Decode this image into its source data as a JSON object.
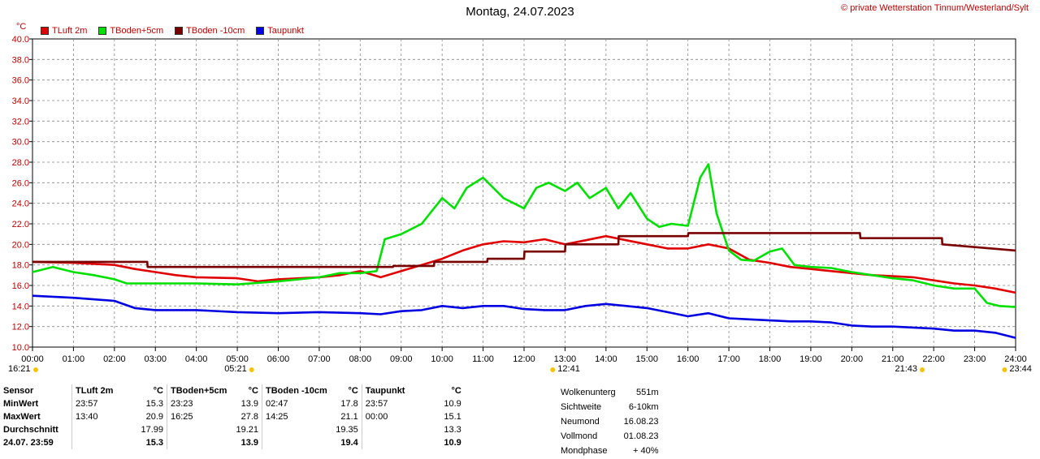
{
  "header": {
    "title": "Montag, 24.07.2023",
    "copyright": "© private Wetterstation Tinnum/Westerland/Sylt",
    "unit": "°C"
  },
  "legend": [
    {
      "label": "TLuft 2m",
      "color": "#e00000"
    },
    {
      "label": "TBoden+5cm",
      "color": "#00e000"
    },
    {
      "label": "TBoden -10cm",
      "color": "#7a0000"
    },
    {
      "label": "Taupunkt",
      "color": "#0000e0"
    }
  ],
  "chart_data": {
    "type": "line",
    "ylim": [
      10,
      40
    ],
    "yticks": [
      "10.0",
      "12.0",
      "14.0",
      "16.0",
      "18.0",
      "20.0",
      "22.0",
      "24.0",
      "26.0",
      "28.0",
      "30.0",
      "32.0",
      "34.0",
      "36.0",
      "38.0",
      "40.0"
    ],
    "xlim": [
      0,
      24
    ],
    "xticks": [
      "00:00",
      "01:00",
      "02:00",
      "03:00",
      "04:00",
      "05:00",
      "06:00",
      "07:00",
      "08:00",
      "09:00",
      "10:00",
      "11:00",
      "12:00",
      "13:00",
      "14:00",
      "15:00",
      "16:00",
      "17:00",
      "18:00",
      "19:00",
      "20:00",
      "21:00",
      "22:00",
      "23:00",
      "24:00"
    ],
    "sun_moon_labels": [
      {
        "x": 0,
        "text": "16:21"
      },
      {
        "x": 5.35,
        "text": "05:21"
      },
      {
        "x": 12.7,
        "text": "12:41"
      },
      {
        "x": 21.72,
        "text": "21:43"
      },
      {
        "x": 23.73,
        "text": "23:44"
      }
    ],
    "series": [
      {
        "name": "TLuft 2m",
        "color": "#e00000",
        "x": [
          0,
          1,
          2,
          2.5,
          3,
          3.5,
          4,
          5,
          5.5,
          6,
          7,
          7.5,
          8,
          8.5,
          9,
          9.5,
          10,
          10.5,
          11,
          11.5,
          12,
          12.5,
          13,
          13.5,
          14,
          14.5,
          15,
          15.5,
          16,
          16.5,
          17,
          17.5,
          18,
          18.5,
          19,
          19.5,
          20,
          20.5,
          21,
          21.5,
          22,
          22.5,
          23,
          23.5,
          24
        ],
        "y": [
          18.3,
          18.2,
          18.0,
          17.6,
          17.3,
          17.0,
          16.8,
          16.7,
          16.4,
          16.6,
          16.8,
          17.0,
          17.4,
          16.8,
          17.4,
          18.0,
          18.6,
          19.4,
          20.0,
          20.3,
          20.2,
          20.5,
          20.0,
          20.4,
          20.8,
          20.4,
          20.0,
          19.6,
          19.6,
          20.0,
          19.6,
          18.5,
          18.2,
          17.8,
          17.6,
          17.4,
          17.2,
          17.0,
          16.9,
          16.8,
          16.5,
          16.2,
          16.0,
          15.7,
          15.3
        ]
      },
      {
        "name": "TBoden+5cm",
        "color": "#00e000",
        "x": [
          0,
          0.5,
          1,
          1.5,
          2,
          2.3,
          3,
          3.5,
          4,
          5,
          6,
          6.5,
          7,
          7.5,
          8,
          8.4,
          8.6,
          9,
          9.5,
          10,
          10.3,
          10.6,
          11,
          11.5,
          12,
          12.3,
          12.6,
          13,
          13.3,
          13.6,
          14,
          14.3,
          14.6,
          15,
          15.3,
          15.6,
          16,
          16.3,
          16.5,
          16.7,
          17,
          17.3,
          17.6,
          18,
          18.3,
          18.6,
          19,
          19.5,
          20,
          20.5,
          21,
          21.5,
          22,
          22.5,
          23,
          23.3,
          23.6,
          24
        ],
        "y": [
          17.3,
          17.8,
          17.3,
          17.0,
          16.6,
          16.2,
          16.2,
          16.2,
          16.2,
          16.1,
          16.4,
          16.6,
          16.8,
          17.2,
          17.2,
          17.4,
          20.5,
          21.0,
          22.0,
          24.5,
          23.5,
          25.5,
          26.5,
          24.5,
          23.5,
          25.5,
          26.0,
          25.2,
          26.0,
          24.5,
          25.5,
          23.5,
          25.0,
          22.5,
          21.7,
          22.0,
          21.8,
          26.5,
          27.8,
          23.0,
          19.4,
          18.5,
          18.4,
          19.3,
          19.6,
          18.0,
          17.8,
          17.7,
          17.3,
          17.0,
          16.7,
          16.5,
          16.0,
          15.7,
          15.7,
          14.3,
          14.0,
          13.9
        ]
      },
      {
        "name": "TBoden -10cm",
        "color": "#7a0000",
        "x": [
          0,
          2.8,
          2.81,
          8.8,
          8.81,
          9.8,
          9.81,
          11.1,
          11.11,
          12,
          12.01,
          13,
          13.01,
          14.3,
          14.31,
          16,
          16.01,
          17,
          17.01,
          20.2,
          20.21,
          22.2,
          22.21,
          24
        ],
        "y": [
          18.3,
          18.3,
          17.8,
          17.8,
          17.9,
          17.9,
          18.3,
          18.3,
          18.6,
          18.6,
          19.3,
          19.3,
          20.0,
          20.0,
          20.8,
          20.8,
          21.1,
          21.1,
          21.1,
          21.1,
          20.6,
          20.6,
          20.0,
          19.4
        ]
      },
      {
        "name": "Taupunkt",
        "color": "#0000e0",
        "x": [
          0,
          1,
          2,
          2.5,
          3,
          4,
          5,
          6,
          7,
          8,
          8.5,
          9,
          9.5,
          10,
          10.5,
          11,
          11.5,
          12,
          12.5,
          13,
          13.5,
          14,
          14.5,
          15,
          15.5,
          16,
          16.5,
          17,
          17.5,
          18,
          18.5,
          19,
          19.5,
          20,
          20.5,
          21,
          21.5,
          22,
          22.5,
          23,
          23.5,
          24
        ],
        "y": [
          15.0,
          14.8,
          14.5,
          13.8,
          13.6,
          13.6,
          13.4,
          13.3,
          13.4,
          13.3,
          13.2,
          13.5,
          13.6,
          14.0,
          13.8,
          14.0,
          14.0,
          13.7,
          13.6,
          13.6,
          14.0,
          14.2,
          14.0,
          13.8,
          13.4,
          13.0,
          13.3,
          12.8,
          12.7,
          12.6,
          12.5,
          12.5,
          12.4,
          12.1,
          12.0,
          12.0,
          11.9,
          11.8,
          11.6,
          11.6,
          11.4,
          10.9
        ]
      }
    ]
  },
  "stats": {
    "headers": [
      "Sensor",
      "TLuft 2m",
      "°C",
      "TBoden+5cm",
      "°C",
      "TBoden -10cm",
      "°C",
      "Taupunkt",
      "°C"
    ],
    "rows": [
      [
        "MinWert",
        "23:57",
        "15.3",
        "23:23",
        "13.9",
        "02:47",
        "17.8",
        "23:57",
        "10.9"
      ],
      [
        "MaxWert",
        "13:40",
        "20.9",
        "16:25",
        "27.8",
        "14:25",
        "21.1",
        "00:00",
        "15.1"
      ],
      [
        "Durchschnitt",
        "",
        "17.99",
        "",
        "19.21",
        "",
        "19.35",
        "",
        "13.3"
      ],
      [
        "24.07.  23:59",
        "",
        "15.3",
        "",
        "13.9",
        "",
        "19.4",
        "",
        "10.9"
      ]
    ]
  },
  "info": [
    {
      "label": "Wolkenunterg",
      "value": "551m"
    },
    {
      "label": "Sichtweite",
      "value": "6-10km"
    },
    {
      "label": "Neumond",
      "value": "16.08.23"
    },
    {
      "label": "Vollmond",
      "value": "01.08.23"
    },
    {
      "label": "Mondphase",
      "value": "+ 40%"
    }
  ]
}
